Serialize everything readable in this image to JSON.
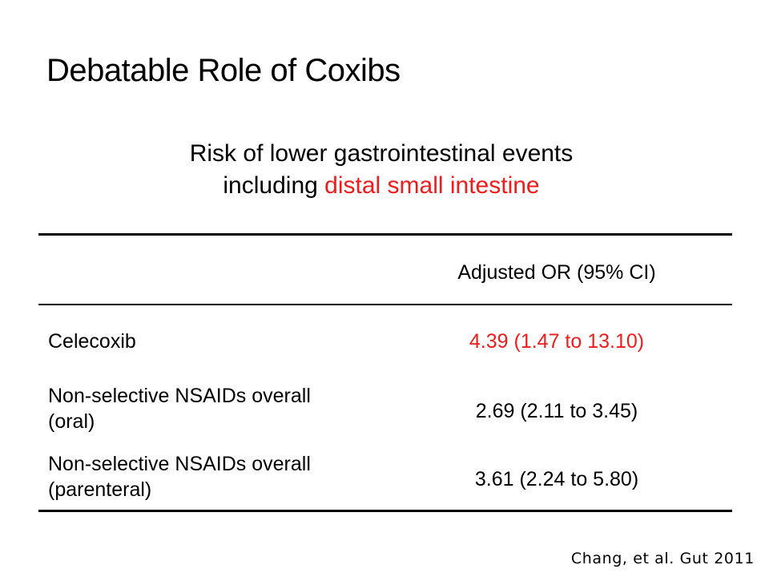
{
  "slide": {
    "title": "Debatable Role of Coxibs",
    "subtitle": {
      "line1": "Risk of lower gastrointestinal events",
      "line2_prefix": "including ",
      "line2_highlight": "distal small intestine"
    },
    "colors": {
      "text": "#000000",
      "highlight": "#ee1c1c",
      "background": "#ffffff"
    }
  },
  "table": {
    "header": {
      "label_col": "",
      "value_col": "Adjusted OR (95% CI)"
    },
    "rows": [
      {
        "label_lines": [
          "Celecoxib"
        ],
        "value": "4.39 (1.47 to 13.10)",
        "highlighted": true
      },
      {
        "label_lines": [
          "Non-selective NSAIDs overall",
          "(oral)"
        ],
        "value": "2.69 (2.11 to 3.45)",
        "highlighted": false
      },
      {
        "label_lines": [
          "Non-selective NSAIDs overall",
          "(parenteral)"
        ],
        "value": "3.61 (2.24 to 5.80)",
        "highlighted": false
      }
    ]
  },
  "citation": "Chang, et al. Gut 2011"
}
